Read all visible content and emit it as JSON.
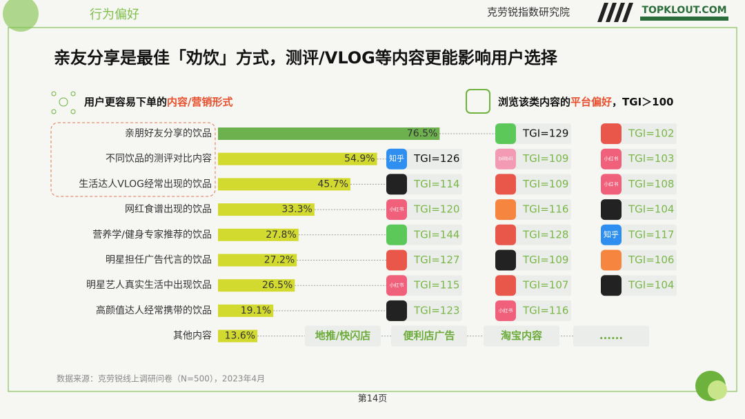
{
  "header": {
    "section": "行为偏好",
    "org": "克劳锐指数研究院",
    "logo": "TOPKLOUT.COM"
  },
  "title": "亲友分享是最佳「劝饮」方式，测评/VLOG等内容更能影响用户选择",
  "left_heading": {
    "part1": "用户更容易下单的",
    "part2": "内容/营销形式"
  },
  "right_heading": {
    "part1": "浏览该类内容的",
    "part2": "平台偏好",
    "part3": "，TGI＞100"
  },
  "chart_data": {
    "type": "hbar",
    "categories": [
      "亲朋好友分享的饮品",
      "不同饮品的测评对比内容",
      "生活达人VLOG经常出现的饮品",
      "网红食谱出现的饮品",
      "营养学/健身专家推荐的饮品",
      "明星担任广告代言的饮品",
      "明星艺人真实生活中出现饮品",
      "高颜值达人经常携带的饮品",
      "其他内容"
    ],
    "values": [
      76.5,
      54.9,
      45.7,
      33.3,
      27.8,
      27.2,
      26.5,
      19.1,
      13.6
    ],
    "value_labels": [
      "76.5%",
      "54.9%",
      "45.7%",
      "33.3%",
      "27.8%",
      "27.2%",
      "26.5%",
      "19.1%",
      "13.6%"
    ],
    "colors": [
      "#6db04e",
      "#d2d92f",
      "#d2d92f",
      "#d2d92f",
      "#d2d92f",
      "#d2d92f",
      "#d2d92f",
      "#d2d92f",
      "#d2d92f"
    ]
  },
  "icons": {
    "wechat": "#5cc85a",
    "weibo": "#e9574a",
    "zhihu": "#2f8ff0",
    "bilibili": "#f39bb5",
    "xiaohongshu": "#f0607a",
    "douyin": "#222222",
    "kuaishou": "#f5853f"
  },
  "tgi": [
    [
      null,
      {
        "icon": "wechat",
        "label": "TGI=129",
        "highlight": true
      },
      {
        "icon": "weibo",
        "label": "TGI=102"
      }
    ],
    [
      {
        "icon": "zhihu",
        "icon_text": "知乎",
        "label": "TGI=126",
        "highlight": true
      },
      {
        "icon": "bilibili",
        "icon_text": "bilibili",
        "label": "TGI=109"
      },
      {
        "icon": "xiaohongshu",
        "icon_text": "小红书",
        "label": "TGI=103"
      }
    ],
    [
      {
        "icon": "douyin",
        "label": "TGI=114"
      },
      {
        "icon": "weibo",
        "label": "TGI=109"
      },
      {
        "icon": "xiaohongshu",
        "icon_text": "小红书",
        "label": "TGI=108"
      }
    ],
    [
      {
        "icon": "xiaohongshu",
        "icon_text": "小红书",
        "label": "TGI=120"
      },
      {
        "icon": "kuaishou",
        "label": "TGI=116"
      },
      {
        "icon": "douyin",
        "label": "TGI=104"
      }
    ],
    [
      {
        "icon": "wechat",
        "label": "TGI=144"
      },
      {
        "icon": "weibo",
        "label": "TGI=128"
      },
      {
        "icon": "zhihu",
        "icon_text": "知乎",
        "label": "TGI=117"
      }
    ],
    [
      {
        "icon": "weibo",
        "label": "TGI=127"
      },
      {
        "icon": "douyin",
        "label": "TGI=109"
      },
      {
        "icon": "kuaishou",
        "label": "TGI=106"
      }
    ],
    [
      {
        "icon": "xiaohongshu",
        "icon_text": "小红书",
        "label": "TGI=115"
      },
      {
        "icon": "weibo",
        "label": "TGI=107"
      },
      {
        "icon": "douyin",
        "label": "TGI=104"
      }
    ],
    [
      {
        "icon": "douyin",
        "label": "TGI=123"
      },
      {
        "icon": "xiaohongshu",
        "icon_text": "小红书",
        "label": "TGI=116"
      },
      null
    ]
  ],
  "other_channels": [
    "地推/快闪店",
    "便利店广告",
    "淘宝内容",
    "......"
  ],
  "source": "数据来源：克劳锐线上调研问卷（N=500），2023年4月",
  "page": "第14页"
}
